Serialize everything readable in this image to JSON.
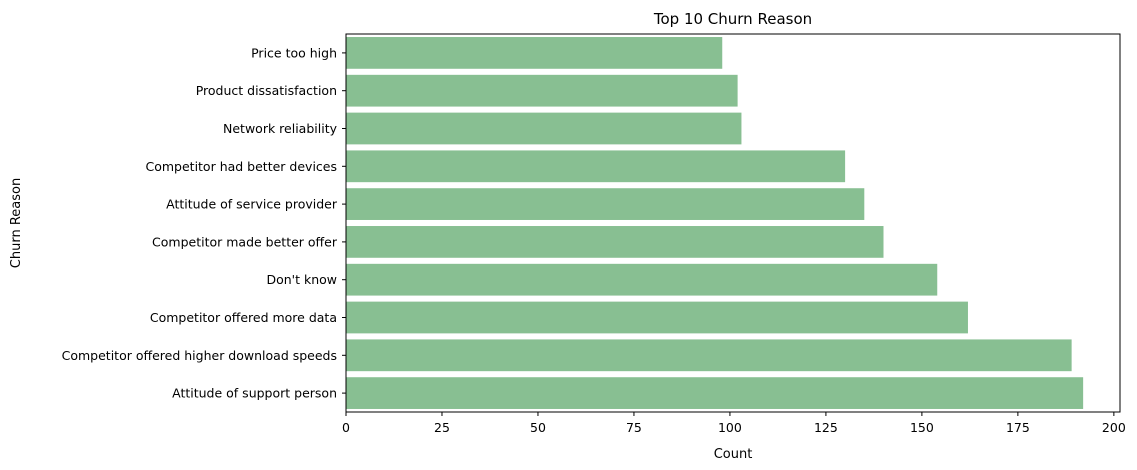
{
  "chart_data": {
    "type": "bar",
    "orientation": "horizontal",
    "title": "Top 10 Churn Reason",
    "xlabel": "Count",
    "ylabel": "Churn Reason",
    "categories": [
      "Price too high",
      "Product dissatisfaction",
      "Network reliability",
      "Competitor had better devices",
      "Attitude of service provider",
      "Competitor made better offer",
      "Don't know",
      "Competitor offered more data",
      "Competitor offered higher download speeds",
      "Attitude of support person"
    ],
    "values": [
      98,
      102,
      103,
      130,
      135,
      140,
      154,
      162,
      189,
      192
    ],
    "xlim": [
      0,
      201.6
    ],
    "xticks": [
      0,
      25,
      50,
      75,
      100,
      125,
      150,
      175,
      200
    ],
    "grid": false,
    "bar_color": "#88bf92"
  }
}
